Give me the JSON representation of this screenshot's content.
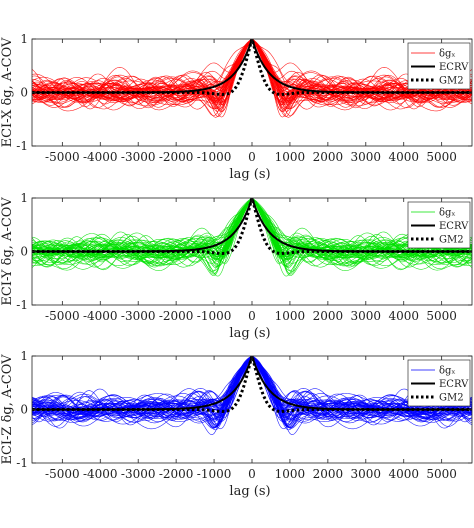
{
  "chart_data": [
    {
      "type": "line",
      "xlabel": "lag (s)",
      "ylabel": "ECI-X δg, A-COV",
      "xlim": [
        -5800,
        5800
      ],
      "ylim": [
        -1,
        1
      ],
      "xticks": [
        -5000,
        -4000,
        -3000,
        -2000,
        -1000,
        0,
        1000,
        2000,
        3000,
        4000,
        5000
      ],
      "xtick_labels": [
        "-5000",
        "-4000",
        "-3000",
        "-2000",
        "-1000",
        "0",
        "1000",
        "2000",
        "3000",
        "4000",
        "5000"
      ],
      "yticks": [
        -1,
        0,
        1
      ],
      "ytick_labels": [
        "-1",
        "0",
        "1"
      ],
      "grid": false,
      "legend_placement": "top-right",
      "ensemble_color": "#ff0000",
      "ensemble_count": 60,
      "series": [
        {
          "name": "δgₓ",
          "style": "thin-ensemble",
          "color": "#ff0000"
        },
        {
          "name": "ECRV",
          "style": "solid",
          "color": "#000000",
          "tau": 450
        },
        {
          "name": "GM2",
          "style": "dotted",
          "color": "#000000",
          "tau": 260
        }
      ]
    },
    {
      "type": "line",
      "xlabel": "lag (s)",
      "ylabel": "ECI-Y δg, A-COV",
      "xlim": [
        -5800,
        5800
      ],
      "ylim": [
        -1,
        1
      ],
      "xticks": [
        -5000,
        -4000,
        -3000,
        -2000,
        -1000,
        0,
        1000,
        2000,
        3000,
        4000,
        5000
      ],
      "xtick_labels": [
        "-5000",
        "-4000",
        "-3000",
        "-2000",
        "-1000",
        "0",
        "1000",
        "2000",
        "3000",
        "4000",
        "5000"
      ],
      "yticks": [
        -1,
        0,
        1
      ],
      "ytick_labels": [
        "-1",
        "0",
        "1"
      ],
      "grid": false,
      "legend_placement": "top-right",
      "ensemble_color": "#00e000",
      "ensemble_count": 60,
      "series": [
        {
          "name": "δgₓ",
          "style": "thin-ensemble",
          "color": "#00e000"
        },
        {
          "name": "ECRV",
          "style": "solid",
          "color": "#000000",
          "tau": 450
        },
        {
          "name": "GM2",
          "style": "dotted",
          "color": "#000000",
          "tau": 260
        }
      ]
    },
    {
      "type": "line",
      "xlabel": "lag (s)",
      "ylabel": "ECI-Z δg, A-COV",
      "xlim": [
        -5800,
        5800
      ],
      "ylim": [
        -1,
        1
      ],
      "xticks": [
        -5000,
        -4000,
        -3000,
        -2000,
        -1000,
        0,
        1000,
        2000,
        3000,
        4000,
        5000
      ],
      "xtick_labels": [
        "-5000",
        "-4000",
        "-3000",
        "-2000",
        "-1000",
        "0",
        "1000",
        "2000",
        "3000",
        "4000",
        "5000"
      ],
      "yticks": [
        -1,
        0,
        1
      ],
      "ytick_labels": [
        "-1",
        "0",
        "1"
      ],
      "grid": false,
      "legend_placement": "top-right",
      "ensemble_color": "#0000ff",
      "ensemble_count": 60,
      "series": [
        {
          "name": "δgₓ",
          "style": "thin-ensemble",
          "color": "#0000ff"
        },
        {
          "name": "ECRV",
          "style": "solid",
          "color": "#000000",
          "tau": 450
        },
        {
          "name": "GM2",
          "style": "dotted",
          "color": "#000000",
          "tau": 260
        }
      ]
    }
  ]
}
